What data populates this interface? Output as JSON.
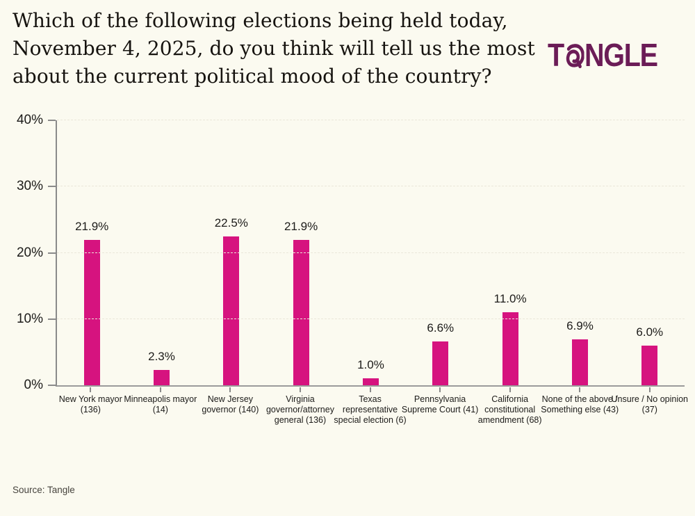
{
  "header": {
    "title_lines": [
      "Which of the following elections being held today,",
      "November 4, 2025, do you think will tell us the most",
      "about the current political mood of the country?"
    ],
    "logo": {
      "prefix": "T",
      "suffix": "NGLE",
      "name": "Tangle",
      "color": "#6B1C57"
    }
  },
  "chart_data": {
    "type": "bar",
    "title": "Which of the following elections being held today, November 4, 2025, do you think will tell us the most about the current political mood of the country?",
    "categories": [
      "New York mayor (136)",
      "Minneapolis mayor (14)",
      "New Jersey governor (140)",
      "Virginia governor/attorney general (136)",
      "Texas representative special election (6)",
      "Pennsylvania Supreme Court (41)",
      "California constitutional amendment (68)",
      "None of the above / Something else (43)",
      "Unsure / No opinion (37)"
    ],
    "values": [
      21.9,
      2.3,
      22.5,
      21.9,
      1.0,
      6.6,
      11.0,
      6.9,
      6.0
    ],
    "value_labels": [
      "21.9%",
      "2.3%",
      "22.5%",
      "21.9%",
      "1.0%",
      "6.6%",
      "11.0%",
      "6.9%",
      "6.0%"
    ],
    "y_ticks": [
      0,
      10,
      20,
      30,
      40
    ],
    "y_tick_labels": [
      "0%",
      "10%",
      "20%",
      "30%",
      "40%"
    ],
    "ylim": [
      0,
      40
    ],
    "xlabel": "",
    "ylabel": "",
    "legend": "none",
    "grid": "horizontal-dashed",
    "bar_color": "#D6137F"
  },
  "footer": {
    "source": "Source: Tangle"
  },
  "colors": {
    "background": "#FBFAF0",
    "bar": "#D6137F",
    "logo": "#6B1C57",
    "axis": "#8A8A8A",
    "gridline": "#EAE7D9",
    "text": "#1C1B19",
    "source_text": "#47443E"
  }
}
